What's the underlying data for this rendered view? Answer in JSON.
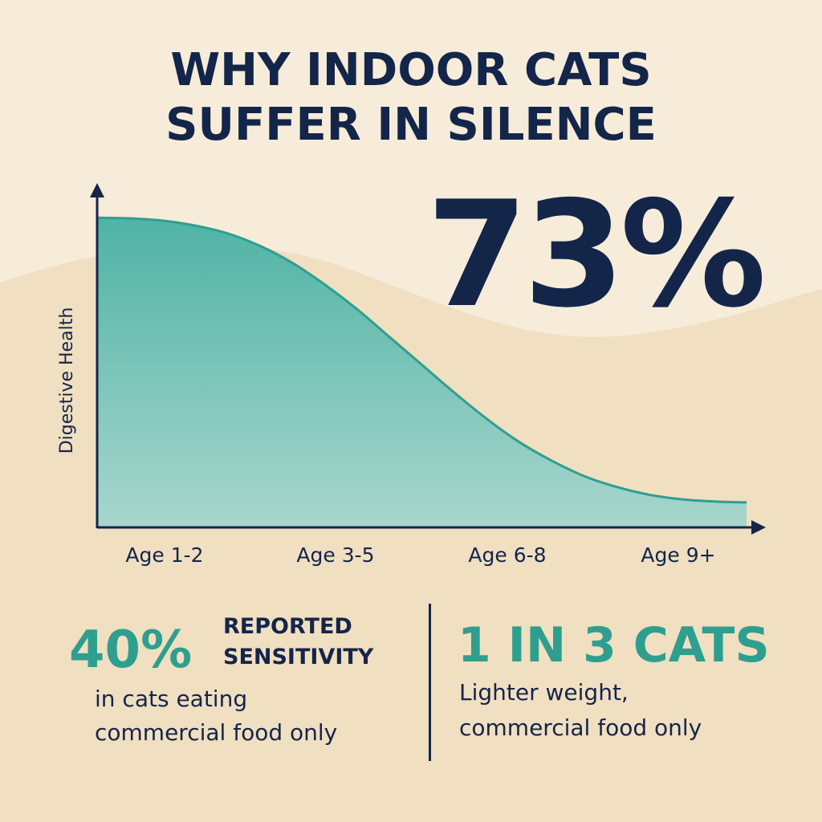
{
  "colors": {
    "background": "#f6ecd9",
    "background_wave": "#f0dfc1",
    "navy": "#14254a",
    "teal": "#2e9f8f",
    "area_top": "#4fb3a5",
    "area_bottom": "#a8d6cc"
  },
  "title": {
    "line1": "WHY INDOOR CATS",
    "line2": "SUFFER IN SILENCE"
  },
  "big_stat": "73%",
  "chart_data": {
    "type": "area",
    "categories": [
      "Age 1-2",
      "Age 3-5",
      "Age 6-8",
      "Age 9+"
    ],
    "x": [
      0,
      1,
      2,
      3,
      4,
      5,
      6,
      7,
      8,
      9,
      10,
      11,
      12,
      13,
      14,
      15,
      16,
      17,
      18,
      19,
      20
    ],
    "series": [
      {
        "values": [
          100,
          99.8,
          99.1,
          97.5,
          95.0,
          91.0,
          85.5,
          78.5,
          70.5,
          61.5,
          52.5,
          43.5,
          35.0,
          27.5,
          21.5,
          16.5,
          13.0,
          10.5,
          9.0,
          8.3,
          8.0
        ]
      }
    ],
    "xlabel": "",
    "ylabel": "Digestive Health",
    "ylim": [
      -5,
      105
    ],
    "grid": false,
    "legend": "none"
  },
  "stats": {
    "left": {
      "value": "40%",
      "label_line1": "REPORTED",
      "label_line2": "SENSITIVITY",
      "desc_line1": "in cats eating",
      "desc_line2": "commercial food only"
    },
    "right": {
      "value": "1 IN 3 CATS",
      "desc_line1": "Lighter weight,",
      "desc_line2": "commercial food only"
    }
  }
}
